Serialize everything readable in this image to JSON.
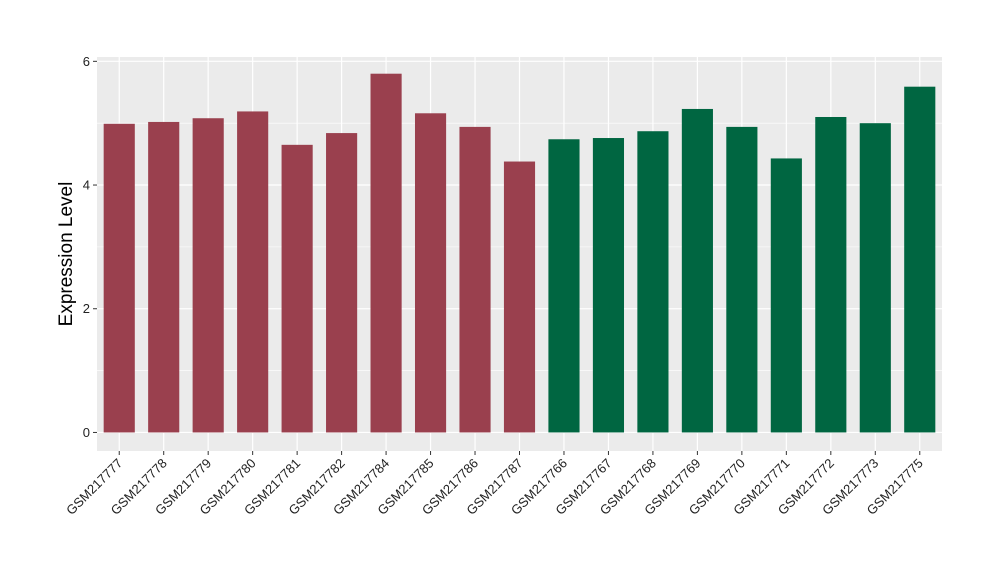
{
  "chart_data": {
    "type": "bar",
    "title": "",
    "xlabel": "",
    "ylabel": "Expression Level",
    "ylim": [
      -0.3,
      6.07
    ],
    "yticks": [
      0,
      2,
      4,
      6
    ],
    "grid": true,
    "legend": "none",
    "categories": [
      "GSM217777",
      "GSM217778",
      "GSM217779",
      "GSM217780",
      "GSM217781",
      "GSM217782",
      "GSM217784",
      "GSM217785",
      "GSM217786",
      "GSM217787",
      "GSM217766",
      "GSM217767",
      "GSM217768",
      "GSM217769",
      "GSM217770",
      "GSM217771",
      "GSM217772",
      "GSM217773",
      "GSM217775"
    ],
    "values": [
      4.99,
      5.02,
      5.08,
      5.19,
      4.65,
      4.84,
      5.8,
      5.16,
      4.94,
      4.38,
      4.74,
      4.76,
      4.87,
      5.23,
      4.94,
      4.43,
      5.1,
      5.0,
      5.59
    ],
    "bar_colors": [
      "#9a404e",
      "#9a404e",
      "#9a404e",
      "#9a404e",
      "#9a404e",
      "#9a404e",
      "#9a404e",
      "#9a404e",
      "#9a404e",
      "#9a404e",
      "#006641",
      "#006641",
      "#006641",
      "#006641",
      "#006641",
      "#006641",
      "#006641",
      "#006641",
      "#006641"
    ],
    "panel_color": "#ebebeb",
    "grid_color": "#ffffff"
  }
}
